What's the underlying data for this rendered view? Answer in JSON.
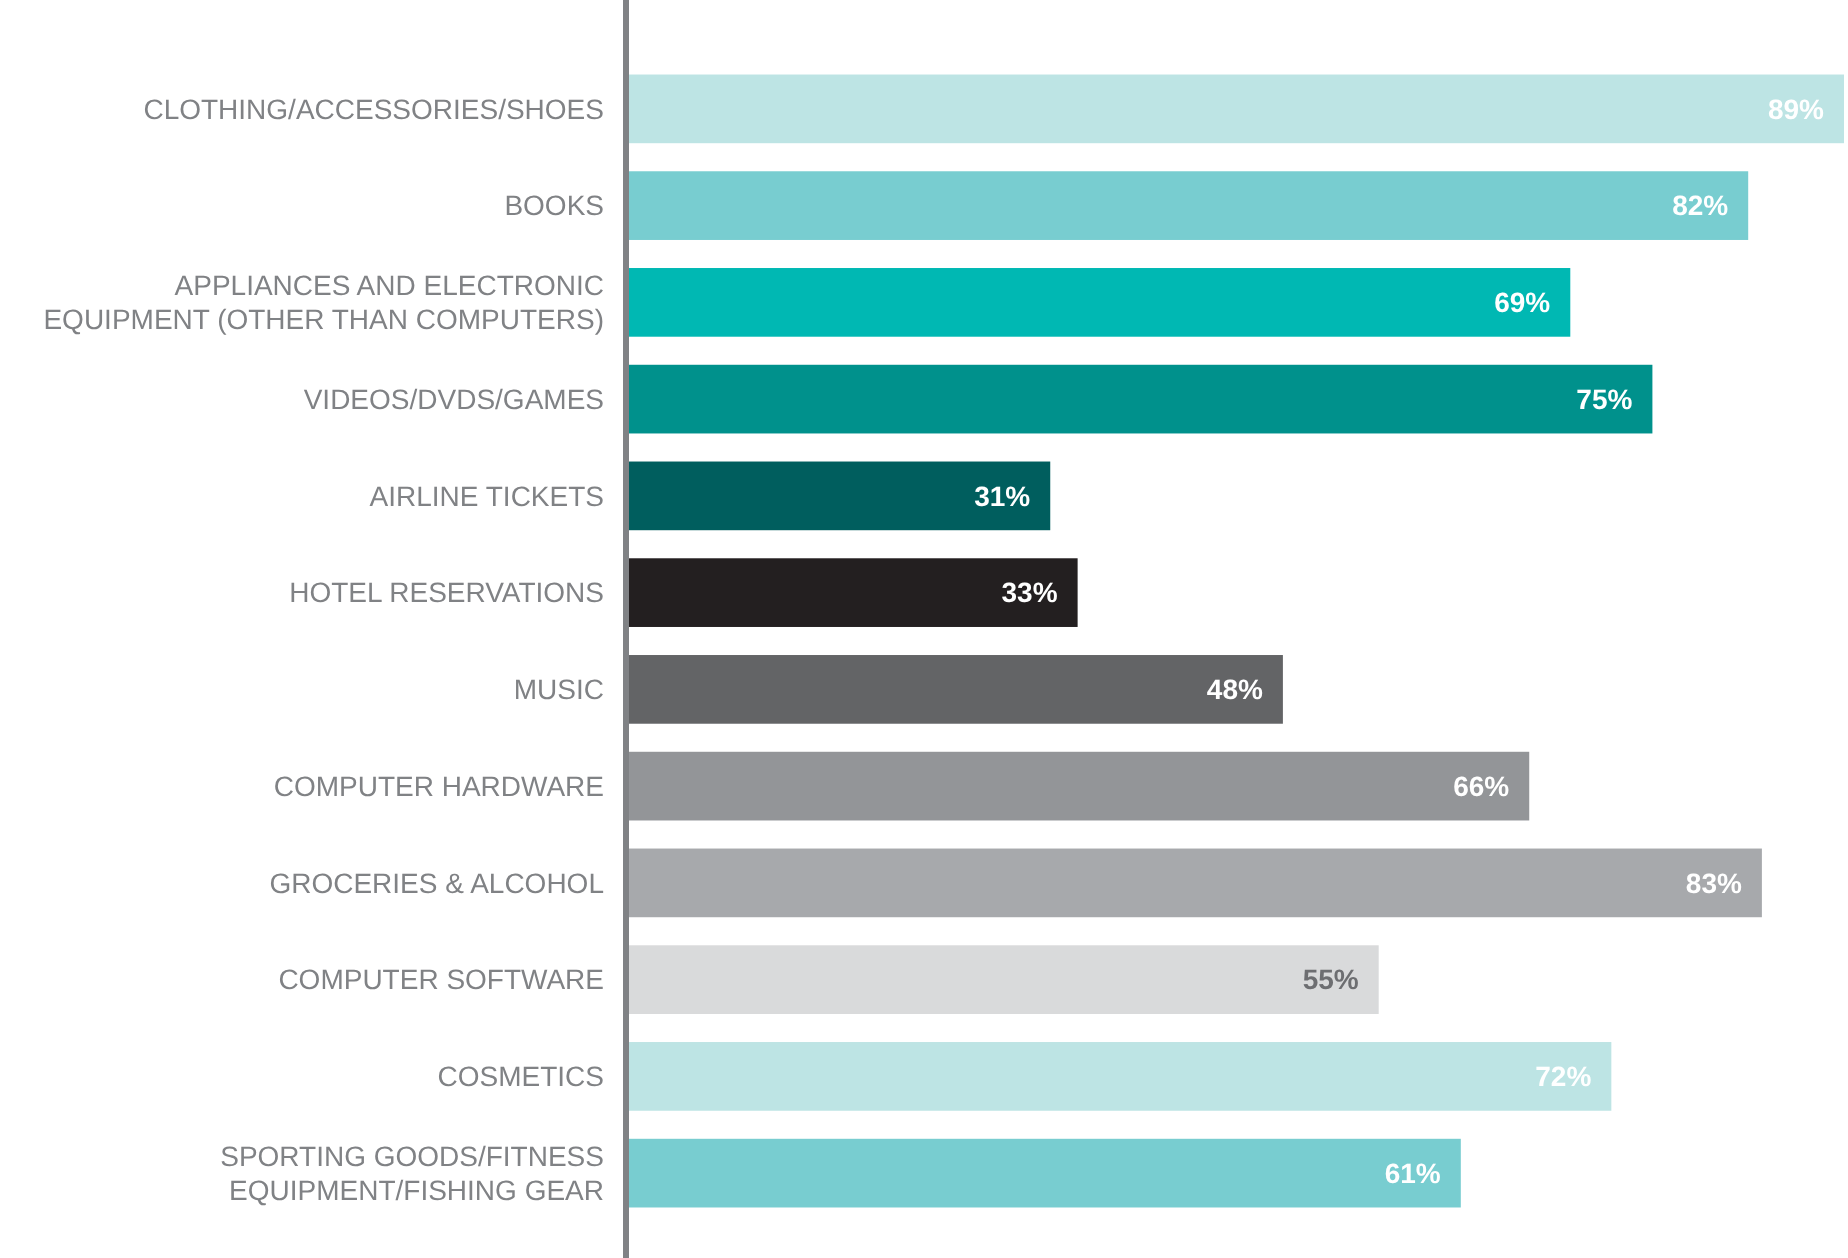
{
  "chart_data": {
    "type": "bar",
    "orientation": "horizontal",
    "categories": [
      "CLOTHING/ACCESSORIES/SHOES",
      "BOOKS",
      "APPLIANCES AND ELECTRONIC EQUIPMENT (OTHER THAN COMPUTERS)",
      "VIDEOS/DVDS/GAMES",
      "AIRLINE TICKETS",
      "HOTEL RESERVATIONS",
      "MUSIC",
      "COMPUTER HARDWARE",
      "GROCERIES & ALCOHOL",
      "COMPUTER SOFTWARE",
      "COSMETICS",
      "SPORTING GOODS/FITNESS EQUIPMENT/FISHING GEAR"
    ],
    "values": [
      89,
      82,
      69,
      75,
      31,
      33,
      48,
      66,
      83,
      55,
      72,
      61
    ],
    "value_labels": [
      "89%",
      "82%",
      "69%",
      "75%",
      "31%",
      "33%",
      "48%",
      "66%",
      "83%",
      "55%",
      "72%",
      "61%"
    ],
    "colors": [
      "#bde4e4",
      "#78cdd0",
      "#00b8b3",
      "#00918c",
      "#005e5e",
      "#231f20",
      "#636466",
      "#939598",
      "#a7a9ac",
      "#d9dadb",
      "#bde4e4",
      "#78cdd0"
    ],
    "xlim": [
      0,
      89
    ]
  }
}
